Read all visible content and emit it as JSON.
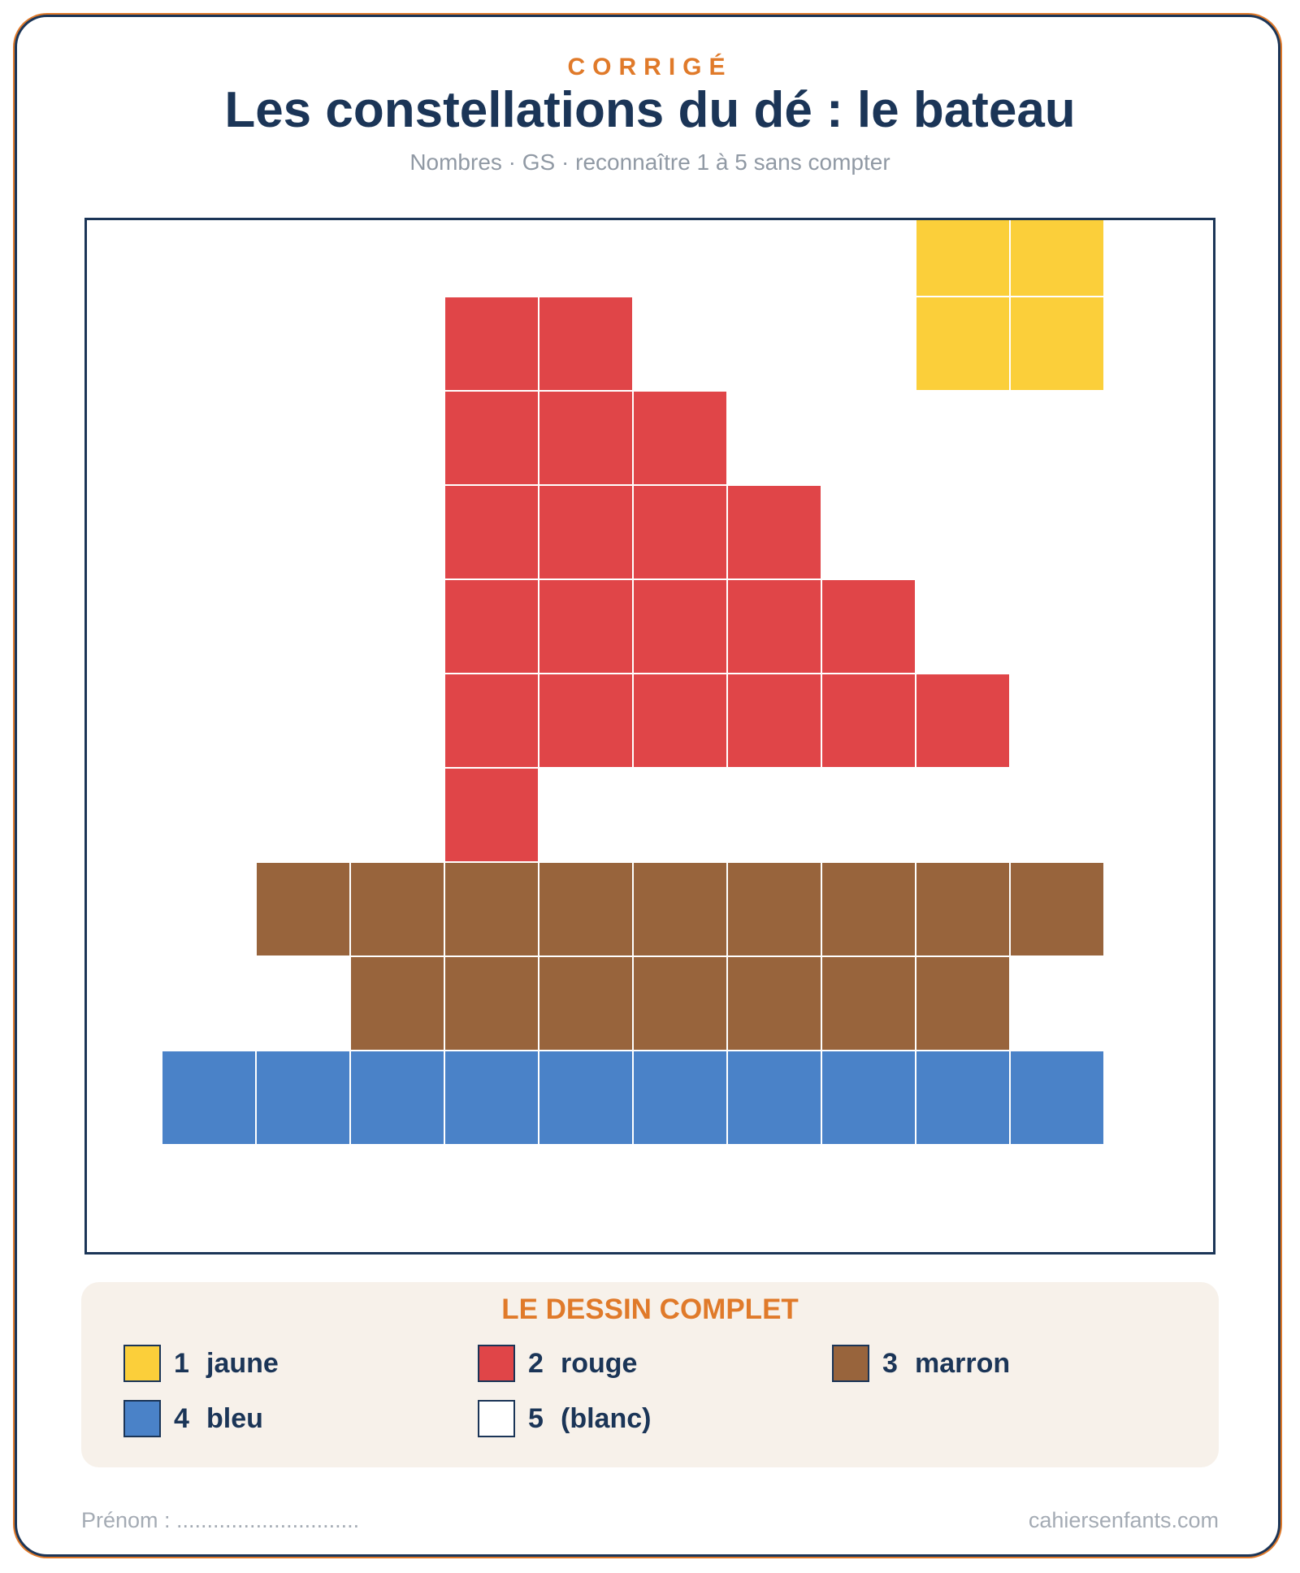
{
  "header": {
    "eyebrow": "CORRIGÉ",
    "title": "Les constellations du dé : le bateau",
    "subtitle": "Nombres · GS · reconnaître 1 à 5 sans compter"
  },
  "colors": {
    "1": "#fbcf3a",
    "2": "#e04548",
    "3": "#98643c",
    "4": "#4a82c8",
    "5": "#ffffff",
    "accent": "#e07a2a",
    "navy": "#1b3557"
  },
  "grid": {
    "cols": 12,
    "rows": 11,
    "cells": [
      [
        5,
        5,
        5,
        5,
        5,
        5,
        5,
        5,
        5,
        1,
        1,
        5
      ],
      [
        5,
        5,
        5,
        5,
        2,
        2,
        5,
        5,
        5,
        1,
        1,
        5
      ],
      [
        5,
        5,
        5,
        5,
        2,
        2,
        2,
        5,
        5,
        5,
        5,
        5
      ],
      [
        5,
        5,
        5,
        5,
        2,
        2,
        2,
        2,
        5,
        5,
        5,
        5
      ],
      [
        5,
        5,
        5,
        5,
        2,
        2,
        2,
        2,
        2,
        5,
        5,
        5
      ],
      [
        5,
        5,
        5,
        5,
        2,
        2,
        2,
        2,
        2,
        2,
        5,
        5
      ],
      [
        5,
        5,
        5,
        5,
        2,
        5,
        5,
        5,
        5,
        5,
        5,
        5
      ],
      [
        5,
        5,
        3,
        3,
        3,
        3,
        3,
        3,
        3,
        3,
        3,
        5
      ],
      [
        5,
        5,
        5,
        3,
        3,
        3,
        3,
        3,
        3,
        3,
        5,
        5
      ],
      [
        5,
        4,
        4,
        4,
        4,
        4,
        4,
        4,
        4,
        4,
        4,
        5
      ],
      [
        5,
        5,
        5,
        5,
        5,
        5,
        5,
        5,
        5,
        5,
        5,
        5
      ]
    ]
  },
  "legend": {
    "title": "LE DESSIN COMPLET",
    "items": [
      {
        "num": "1",
        "label": "jaune",
        "color": "#fbcf3a"
      },
      {
        "num": "2",
        "label": "rouge",
        "color": "#e04548"
      },
      {
        "num": "3",
        "label": "marron",
        "color": "#98643c"
      },
      {
        "num": "4",
        "label": "bleu",
        "color": "#4a82c8"
      },
      {
        "num": "5",
        "label": "(blanc)",
        "color": "#ffffff"
      }
    ]
  },
  "footer": {
    "name_label": "Prénom : ..............................",
    "site": "cahiersenfants.com"
  }
}
